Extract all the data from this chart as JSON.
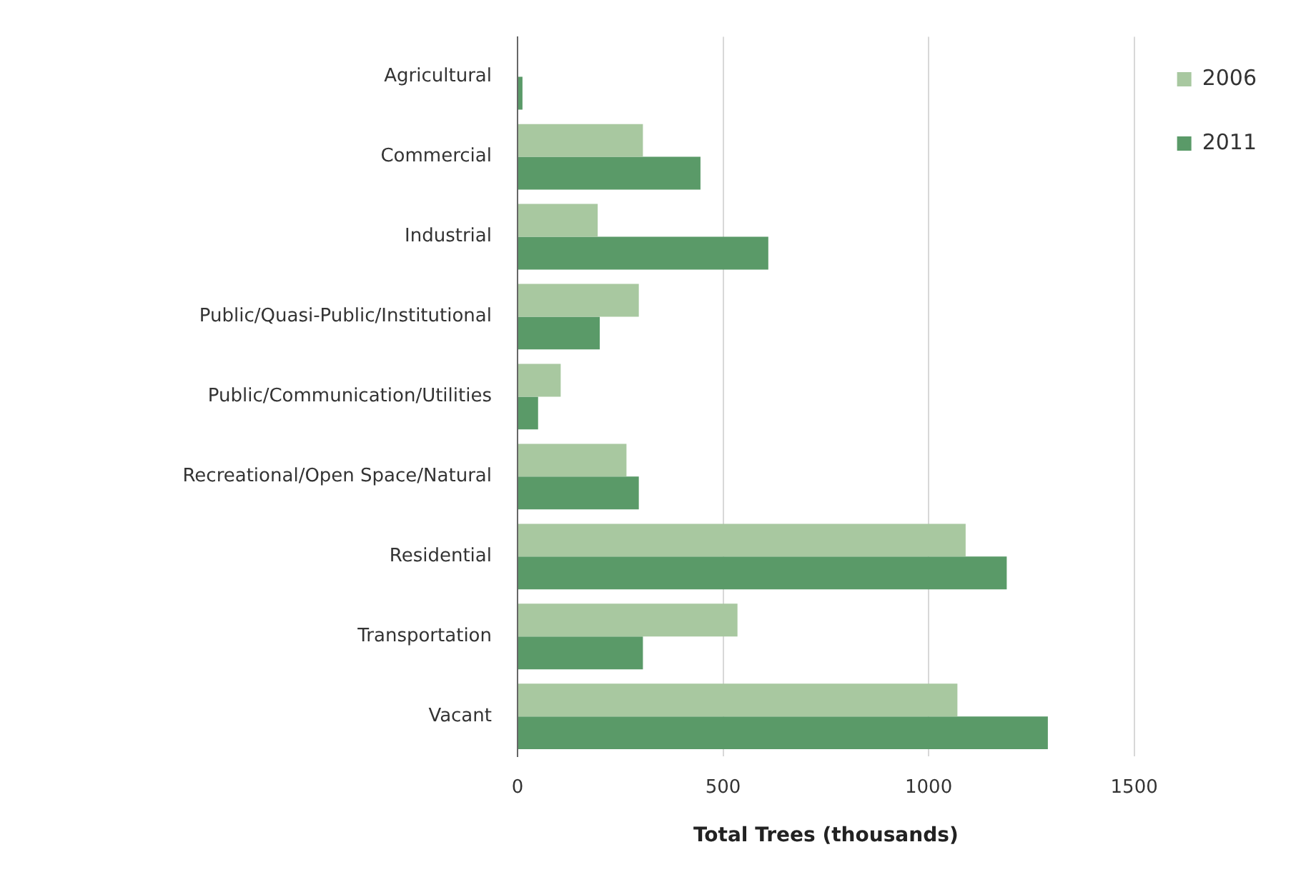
{
  "chart_data": {
    "type": "bar",
    "orientation": "horizontal",
    "xlabel": "Total Trees (thousands)",
    "categories": [
      "Agricultural",
      "Commercial",
      "Industrial",
      "Public/Quasi-Public/Institutional",
      "Public/Communication/Utilities",
      "Recreational/Open Space/Natural",
      "Residential",
      "Transportation",
      "Vacant"
    ],
    "series": [
      {
        "name": "2006",
        "color": "#a8c8a0",
        "values": [
          0,
          305,
          195,
          295,
          105,
          265,
          1090,
          535,
          1070
        ]
      },
      {
        "name": "2011",
        "color": "#5a9a68",
        "values": [
          12,
          445,
          610,
          200,
          50,
          295,
          1190,
          305,
          1290
        ]
      }
    ],
    "xlim": [
      0,
      1500
    ],
    "xticks": [
      0,
      500,
      1000,
      1500
    ],
    "grid": "x",
    "legend": "top right"
  }
}
